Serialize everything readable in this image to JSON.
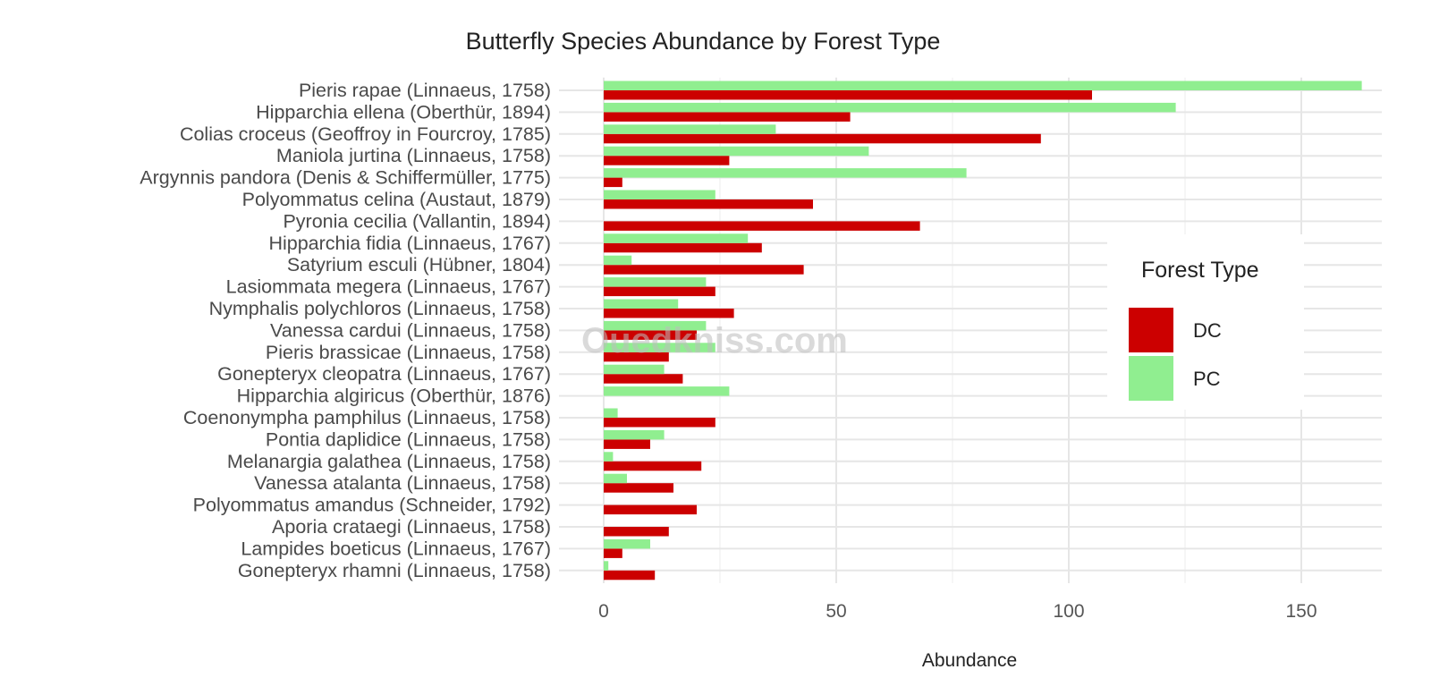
{
  "chart_data": {
    "type": "bar",
    "orientation": "horizontal",
    "title": "Butterfly Species Abundance by Forest Type",
    "xlabel": "Abundance",
    "ylabel": "",
    "xlim": [
      -8,
      170
    ],
    "xticks": [
      0,
      50,
      100,
      150
    ],
    "grid": true,
    "legend": {
      "title": "Forest Type",
      "placement": "right"
    },
    "categories": [
      "Pieris rapae (Linnaeus, 1758)",
      "Hipparchia ellena (Oberthür, 1894)",
      "Colias croceus (Geoffroy in Fourcroy, 1785)",
      "Maniola jurtina (Linnaeus, 1758)",
      "Argynnis pandora (Denis & Schiffermüller, 1775)",
      "Polyommatus celina (Austaut, 1879)",
      "Pyronia cecilia (Vallantin, 1894)",
      "Hipparchia fidia (Linnaeus, 1767)",
      "Satyrium esculi (Hübner, 1804)",
      "Lasiommata megera (Linnaeus, 1767)",
      "Nymphalis polychloros (Linnaeus, 1758)",
      "Vanessa cardui (Linnaeus, 1758)",
      "Pieris brassicae (Linnaeus, 1758)",
      "Gonepteryx cleopatra (Linnaeus, 1767)",
      "Hipparchia algiricus (Oberthür, 1876)",
      "Coenonympha pamphilus (Linnaeus, 1758)",
      "Pontia daplidice (Linnaeus, 1758)",
      "Melanargia galathea (Linnaeus, 1758)",
      "Vanessa atalanta (Linnaeus, 1758)",
      "Polyommatus amandus (Schneider, 1792)",
      "Aporia crataegi (Linnaeus, 1758)",
      "Lampides boeticus (Linnaeus, 1767)",
      "Gonepteryx rhamni (Linnaeus, 1758)"
    ],
    "series": [
      {
        "name": "DC",
        "color": "#cc0000",
        "values": [
          105,
          53,
          94,
          27,
          4,
          45,
          68,
          34,
          43,
          24,
          28,
          20,
          14,
          17,
          0,
          24,
          10,
          21,
          15,
          20,
          14,
          4,
          11
        ]
      },
      {
        "name": "PC",
        "color": "#90ee90",
        "values": [
          163,
          123,
          37,
          57,
          78,
          24,
          0,
          31,
          6,
          22,
          16,
          22,
          24,
          13,
          27,
          3,
          13,
          2,
          5,
          0,
          0,
          10,
          1
        ]
      }
    ]
  },
  "watermark": "Ouedkniss.com"
}
